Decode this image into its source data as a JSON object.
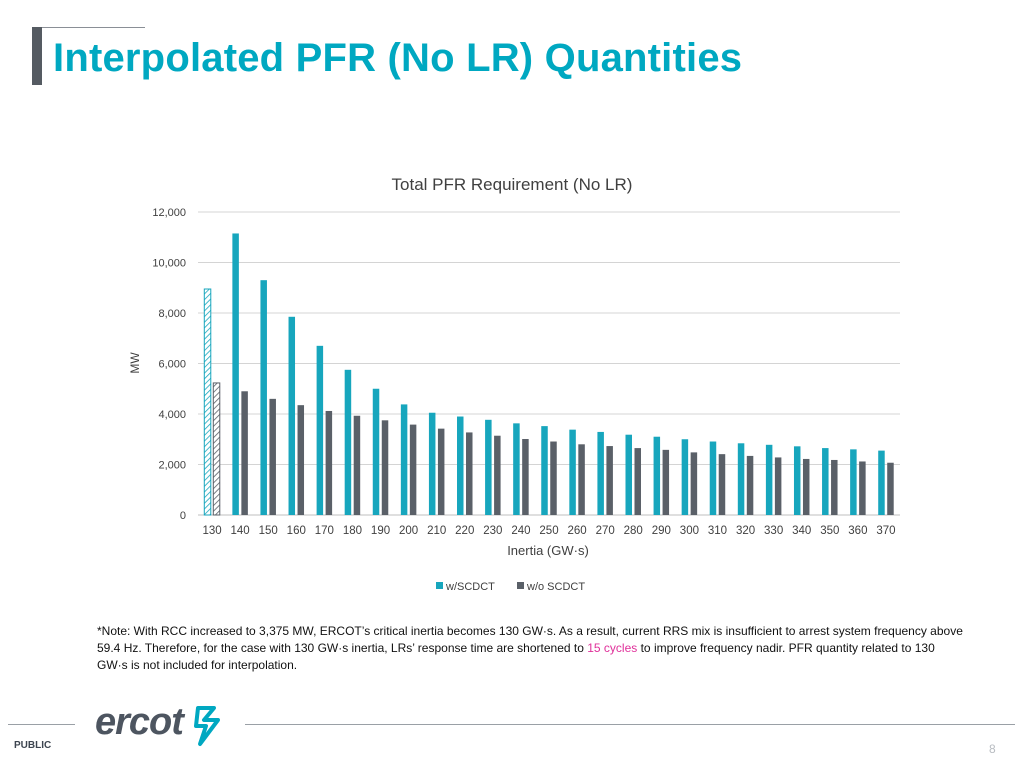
{
  "slide": {
    "title": "Interpolated PFR (No LR) Quantities",
    "note_part1": "*Note: With RCC increased to 3,375 MW, ERCOT’s critical inertia becomes 130 GW·s. As a result, current RRS mix is insufficient to arrest system frequency above 59.4 Hz. Therefore, for the case with 130 GW·s inertia, LRs’ response time are shortened to ",
    "note_highlight": "15 cycles",
    "note_part2": " to improve frequency nadir. PFR quantity related to 130 GW·s is not included for interpolation.",
    "logo_text": "ercot",
    "footer_label": "PUBLIC",
    "page_number": "8"
  },
  "colors": {
    "title": "#00a8c1",
    "series_scdct": "#17a6bd",
    "series_no_scdct": "#5a6068",
    "note_highlight": "#e0309a",
    "gridline": "#d4d4d4"
  },
  "chart_data": {
    "type": "bar",
    "title": "Total PFR Requirement (No LR)",
    "xlabel": "Inertia (GW·s)",
    "ylabel": "MW",
    "ylim": [
      0,
      12000
    ],
    "yticks": [
      0,
      2000,
      4000,
      6000,
      8000,
      10000,
      12000
    ],
    "ytick_labels": [
      "0",
      "2,000",
      "4,000",
      "6,000",
      "8,000",
      "10,000",
      "12,000"
    ],
    "grid": true,
    "legend_position": "bottom",
    "categories": [
      "130",
      "140",
      "150",
      "160",
      "170",
      "180",
      "190",
      "200",
      "210",
      "220",
      "230",
      "240",
      "250",
      "260",
      "270",
      "280",
      "290",
      "300",
      "310",
      "320",
      "330",
      "340",
      "350",
      "360",
      "370"
    ],
    "series": [
      {
        "name": "w/SCDCT",
        "values": [
          8950,
          11150,
          9300,
          7850,
          6700,
          5750,
          5000,
          4380,
          4050,
          3900,
          3770,
          3630,
          3520,
          3380,
          3290,
          3180,
          3100,
          3000,
          2910,
          2840,
          2780,
          2720,
          2650,
          2600,
          2550
        ]
      },
      {
        "name": "w/o SCDCT",
        "values": [
          5230,
          4900,
          4600,
          4350,
          4120,
          3930,
          3750,
          3580,
          3420,
          3270,
          3140,
          3010,
          2910,
          2800,
          2730,
          2650,
          2580,
          2480,
          2410,
          2340,
          2280,
          2220,
          2180,
          2120,
          2070
        ]
      }
    ],
    "hatched_categories": [
      "130"
    ]
  }
}
